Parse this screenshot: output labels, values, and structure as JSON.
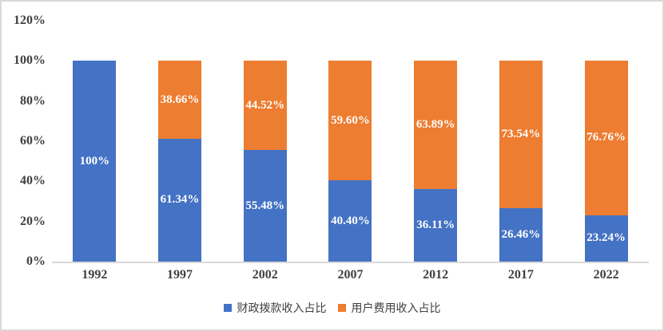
{
  "chart_data": {
    "type": "bar",
    "subtype": "stacked-column-percent",
    "categories": [
      "1992",
      "1997",
      "2002",
      "2007",
      "2012",
      "2017",
      "2022"
    ],
    "series": [
      {
        "name": "财政拨款收入占比",
        "color": "#4472C4",
        "values": [
          100,
          61.34,
          55.48,
          40.4,
          36.11,
          26.46,
          23.24
        ],
        "labels": [
          "100%",
          "61.34%",
          "55.48%",
          "40.40%",
          "36.11%",
          "26.46%",
          "23.24%"
        ]
      },
      {
        "name": "用户费用收入占比",
        "color": "#ED7D31",
        "values": [
          0,
          38.66,
          44.52,
          59.6,
          63.89,
          73.54,
          76.76
        ],
        "labels": [
          "",
          "38.66%",
          "44.52%",
          "59.60%",
          "63.89%",
          "73.54%",
          "76.76%"
        ]
      }
    ],
    "title": "",
    "xlabel": "",
    "ylabel": "",
    "ylim": [
      0,
      120
    ],
    "yticks": [
      {
        "value": 0,
        "label": "0%"
      },
      {
        "value": 20,
        "label": "20%"
      },
      {
        "value": 40,
        "label": "40%"
      },
      {
        "value": 60,
        "label": "60%"
      },
      {
        "value": 80,
        "label": "80%"
      },
      {
        "value": 100,
        "label": "100%"
      },
      {
        "value": 120,
        "label": "120%"
      }
    ],
    "grid": false,
    "legend_position": "bottom",
    "style": {
      "background": "#FFFFFF",
      "frame_border": "#D9D9D9",
      "axis_line": "#D9D9D9",
      "text_color": "#404040",
      "data_label_color": "#FFFFFF"
    }
  }
}
